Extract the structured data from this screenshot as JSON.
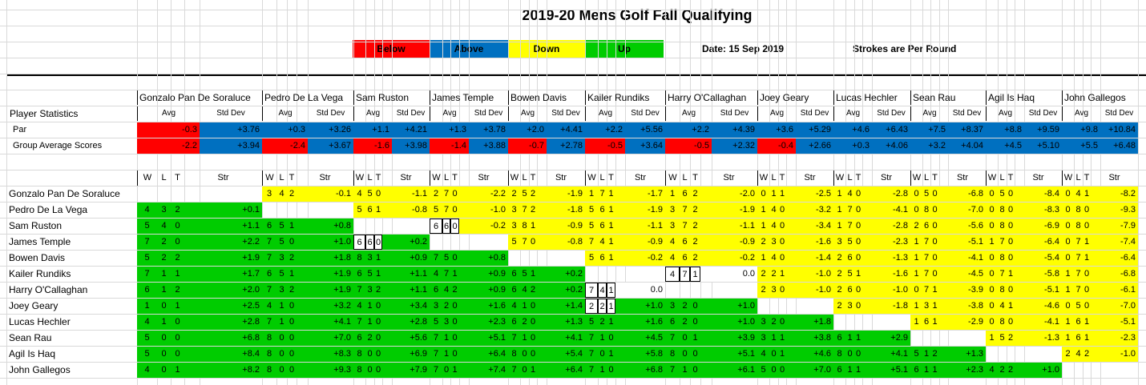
{
  "title": "2019-20 Mens Golf Fall Qualifying",
  "legend": [
    {
      "label": "Below",
      "color": "#ff0000"
    },
    {
      "label": "Above",
      "color": "#0070c0"
    },
    {
      "label": "Down",
      "color": "#ffff00"
    },
    {
      "label": "Up",
      "color": "#00cc00"
    }
  ],
  "date_label": "Date: 15 Sep 2019",
  "note": "Strokes are Per Round",
  "stats_label": "Player Statistics",
  "par_label": "Par",
  "group_label": "Group Average Scores",
  "avg_label": "Avg",
  "std_label": "Std Dev",
  "w_label": "W",
  "l_label": "L",
  "t_label": "T",
  "str_label": "Str",
  "colors": {
    "red": "#ff0000",
    "blue": "#0070c0",
    "yellow": "#ffff00",
    "green": "#00cc00",
    "white": "#ffffff"
  },
  "players": [
    "Gonzalo Pan De Soraluce",
    "Pedro De La Vega",
    "Sam Ruston",
    "James Temple",
    "Bowen Davis",
    "Kailer Rundiks",
    "Harry O'Callaghan",
    "Joey Geary",
    "Lucas Hechler",
    "Sean Rau",
    "Agil Is Haq",
    "John Gallegos"
  ],
  "par_stats": [
    [
      "-0.3",
      "+3.76"
    ],
    [
      "+0.3",
      "+3.26"
    ],
    [
      "+1.1",
      "+4.21"
    ],
    [
      "+1.3",
      "+3.78"
    ],
    [
      "+2.0",
      "+4.41"
    ],
    [
      "+2.2",
      "+5.56"
    ],
    [
      "+2.2",
      "+4.39"
    ],
    [
      "+3.6",
      "+5.29"
    ],
    [
      "+4.6",
      "+6.43"
    ],
    [
      "+7.5",
      "+8.37"
    ],
    [
      "+8.8",
      "+9.59"
    ],
    [
      "+9.8",
      "+10.84"
    ]
  ],
  "group_stats": [
    [
      "-2.2",
      "+3.94"
    ],
    [
      "-2.4",
      "+3.67"
    ],
    [
      "-1.6",
      "+3.98"
    ],
    [
      "-1.4",
      "+3.88"
    ],
    [
      "-0.7",
      "+2.78"
    ],
    [
      "-0.5",
      "+3.64"
    ],
    [
      "-0.5",
      "+2.32"
    ],
    [
      "-0.4",
      "+2.66"
    ],
    [
      "+0.3",
      "+4.06"
    ],
    [
      "+3.2",
      "+4.04"
    ],
    [
      "+4.5",
      "+5.10"
    ],
    [
      "+5.5",
      "+6.48"
    ]
  ],
  "matrix": [
    [
      null,
      [
        "3",
        "4",
        "2",
        "-0.1"
      ],
      [
        "4",
        "5",
        "0",
        "-1.1"
      ],
      [
        "2",
        "7",
        "0",
        "-2.2"
      ],
      [
        "2",
        "5",
        "2",
        "-1.9"
      ],
      [
        "1",
        "7",
        "1",
        "-1.7"
      ],
      [
        "1",
        "6",
        "2",
        "-2.0"
      ],
      [
        "0",
        "1",
        "1",
        "-2.5"
      ],
      [
        "1",
        "4",
        "0",
        "-2.8"
      ],
      [
        "0",
        "5",
        "0",
        "-6.8"
      ],
      [
        "0",
        "5",
        "0",
        "-8.4"
      ],
      [
        "0",
        "4",
        "1",
        "-8.2"
      ]
    ],
    [
      [
        "4",
        "3",
        "2",
        "+0.1"
      ],
      null,
      [
        "5",
        "6",
        "1",
        "-0.8"
      ],
      [
        "5",
        "7",
        "0",
        "-1.0"
      ],
      [
        "3",
        "7",
        "2",
        "-1.8"
      ],
      [
        "5",
        "6",
        "1",
        "-1.9"
      ],
      [
        "3",
        "7",
        "2",
        "-1.9"
      ],
      [
        "1",
        "4",
        "0",
        "-3.2"
      ],
      [
        "1",
        "7",
        "0",
        "-4.1"
      ],
      [
        "0",
        "8",
        "0",
        "-7.0"
      ],
      [
        "0",
        "8",
        "0",
        "-8.3"
      ],
      [
        "0",
        "8",
        "0",
        "-9.3"
      ]
    ],
    [
      [
        "5",
        "4",
        "0",
        "+1.1"
      ],
      [
        "6",
        "5",
        "1",
        "+0.8"
      ],
      null,
      [
        "6",
        "6",
        "0",
        "-0.2"
      ],
      [
        "3",
        "8",
        "1",
        "-0.9"
      ],
      [
        "5",
        "6",
        "1",
        "-1.1"
      ],
      [
        "3",
        "7",
        "2",
        "-1.1"
      ],
      [
        "1",
        "4",
        "0",
        "-3.4"
      ],
      [
        "1",
        "7",
        "0",
        "-2.8"
      ],
      [
        "2",
        "6",
        "0",
        "-5.6"
      ],
      [
        "0",
        "8",
        "0",
        "-6.9"
      ],
      [
        "0",
        "8",
        "0",
        "-7.9"
      ]
    ],
    [
      [
        "7",
        "2",
        "0",
        "+2.2"
      ],
      [
        "7",
        "5",
        "0",
        "+1.0"
      ],
      [
        "6",
        "6",
        "0",
        "+0.2"
      ],
      null,
      [
        "5",
        "7",
        "0",
        "-0.8"
      ],
      [
        "7",
        "4",
        "1",
        "-0.9"
      ],
      [
        "4",
        "6",
        "2",
        "-0.9"
      ],
      [
        "2",
        "3",
        "0",
        "-1.6"
      ],
      [
        "3",
        "5",
        "0",
        "-2.3"
      ],
      [
        "1",
        "7",
        "0",
        "-5.1"
      ],
      [
        "1",
        "7",
        "0",
        "-6.4"
      ],
      [
        "0",
        "7",
        "1",
        "-7.4"
      ]
    ],
    [
      [
        "5",
        "2",
        "2",
        "+1.9"
      ],
      [
        "7",
        "3",
        "2",
        "+1.8"
      ],
      [
        "8",
        "3",
        "1",
        "+0.9"
      ],
      [
        "7",
        "5",
        "0",
        "+0.8"
      ],
      null,
      [
        "5",
        "6",
        "1",
        "-0.2"
      ],
      [
        "4",
        "6",
        "2",
        "-0.2"
      ],
      [
        "1",
        "4",
        "0",
        "-1.4"
      ],
      [
        "2",
        "6",
        "0",
        "-1.3"
      ],
      [
        "1",
        "7",
        "0",
        "-4.1"
      ],
      [
        "0",
        "8",
        "0",
        "-5.4"
      ],
      [
        "0",
        "7",
        "1",
        "-6.4"
      ]
    ],
    [
      [
        "7",
        "1",
        "1",
        "+1.7"
      ],
      [
        "6",
        "5",
        "1",
        "+1.9"
      ],
      [
        "6",
        "5",
        "1",
        "+1.1"
      ],
      [
        "4",
        "7",
        "1",
        "+0.9"
      ],
      [
        "6",
        "5",
        "1",
        "+0.2"
      ],
      null,
      [
        "4",
        "7",
        "1",
        "0.0"
      ],
      [
        "2",
        "2",
        "1",
        "-1.0"
      ],
      [
        "2",
        "5",
        "1",
        "-1.6"
      ],
      [
        "1",
        "7",
        "0",
        "-4.5"
      ],
      [
        "0",
        "7",
        "1",
        "-5.8"
      ],
      [
        "1",
        "7",
        "0",
        "-6.8"
      ]
    ],
    [
      [
        "6",
        "1",
        "2",
        "+2.0"
      ],
      [
        "7",
        "3",
        "2",
        "+1.9"
      ],
      [
        "7",
        "3",
        "2",
        "+1.1"
      ],
      [
        "6",
        "4",
        "2",
        "+0.9"
      ],
      [
        "6",
        "4",
        "2",
        "+0.2"
      ],
      [
        "7",
        "4",
        "1",
        "0.0"
      ],
      null,
      [
        "2",
        "3",
        "0",
        "-1.0"
      ],
      [
        "2",
        "6",
        "0",
        "-1.0"
      ],
      [
        "0",
        "7",
        "1",
        "-3.9"
      ],
      [
        "0",
        "8",
        "0",
        "-5.1"
      ],
      [
        "1",
        "7",
        "0",
        "-6.1"
      ]
    ],
    [
      [
        "1",
        "0",
        "1",
        "+2.5"
      ],
      [
        "4",
        "1",
        "0",
        "+3.2"
      ],
      [
        "4",
        "1",
        "0",
        "+3.4"
      ],
      [
        "3",
        "2",
        "0",
        "+1.6"
      ],
      [
        "4",
        "1",
        "0",
        "+1.4"
      ],
      [
        "2",
        "2",
        "1",
        "+1.0"
      ],
      [
        "3",
        "2",
        "0",
        "+1.0"
      ],
      null,
      [
        "2",
        "3",
        "0",
        "-1.8"
      ],
      [
        "1",
        "3",
        "1",
        "-3.8"
      ],
      [
        "0",
        "4",
        "1",
        "-4.6"
      ],
      [
        "0",
        "5",
        "0",
        "-7.0"
      ]
    ],
    [
      [
        "4",
        "1",
        "0",
        "+2.8"
      ],
      [
        "7",
        "1",
        "0",
        "+4.1"
      ],
      [
        "7",
        "1",
        "0",
        "+2.8"
      ],
      [
        "5",
        "3",
        "0",
        "+2.3"
      ],
      [
        "6",
        "2",
        "0",
        "+1.3"
      ],
      [
        "5",
        "2",
        "1",
        "+1.6"
      ],
      [
        "6",
        "2",
        "0",
        "+1.0"
      ],
      [
        "3",
        "2",
        "0",
        "+1.8"
      ],
      null,
      [
        "1",
        "6",
        "1",
        "-2.9"
      ],
      [
        "0",
        "8",
        "0",
        "-4.1"
      ],
      [
        "1",
        "6",
        "1",
        "-5.1"
      ]
    ],
    [
      [
        "5",
        "0",
        "0",
        "+6.8"
      ],
      [
        "8",
        "0",
        "0",
        "+7.0"
      ],
      [
        "6",
        "2",
        "0",
        "+5.6"
      ],
      [
        "7",
        "1",
        "0",
        "+5.1"
      ],
      [
        "7",
        "1",
        "0",
        "+4.1"
      ],
      [
        "7",
        "1",
        "0",
        "+4.5"
      ],
      [
        "7",
        "0",
        "1",
        "+3.9"
      ],
      [
        "3",
        "1",
        "1",
        "+3.8"
      ],
      [
        "6",
        "1",
        "1",
        "+2.9"
      ],
      null,
      [
        "1",
        "5",
        "2",
        "-1.3"
      ],
      [
        "1",
        "6",
        "1",
        "-2.3"
      ]
    ],
    [
      [
        "5",
        "0",
        "0",
        "+8.4"
      ],
      [
        "8",
        "0",
        "0",
        "+8.3"
      ],
      [
        "8",
        "0",
        "0",
        "+6.9"
      ],
      [
        "7",
        "1",
        "0",
        "+6.4"
      ],
      [
        "8",
        "0",
        "0",
        "+5.4"
      ],
      [
        "7",
        "0",
        "1",
        "+5.8"
      ],
      [
        "8",
        "0",
        "0",
        "+5.1"
      ],
      [
        "4",
        "0",
        "1",
        "+4.6"
      ],
      [
        "8",
        "0",
        "0",
        "+4.1"
      ],
      [
        "5",
        "1",
        "2",
        "+1.3"
      ],
      null,
      [
        "2",
        "4",
        "2",
        "-1.0"
      ]
    ],
    [
      [
        "4",
        "0",
        "1",
        "+8.2"
      ],
      [
        "8",
        "0",
        "0",
        "+9.3"
      ],
      [
        "8",
        "0",
        "0",
        "+7.9"
      ],
      [
        "7",
        "0",
        "1",
        "+7.4"
      ],
      [
        "7",
        "0",
        "1",
        "+6.4"
      ],
      [
        "7",
        "1",
        "0",
        "+6.8"
      ],
      [
        "7",
        "1",
        "0",
        "+6.1"
      ],
      [
        "5",
        "0",
        "0",
        "+7.0"
      ],
      [
        "6",
        "1",
        "1",
        "+5.1"
      ],
      [
        "6",
        "1",
        "1",
        "+2.3"
      ],
      [
        "4",
        "2",
        "2",
        "+1.0"
      ],
      null
    ]
  ]
}
